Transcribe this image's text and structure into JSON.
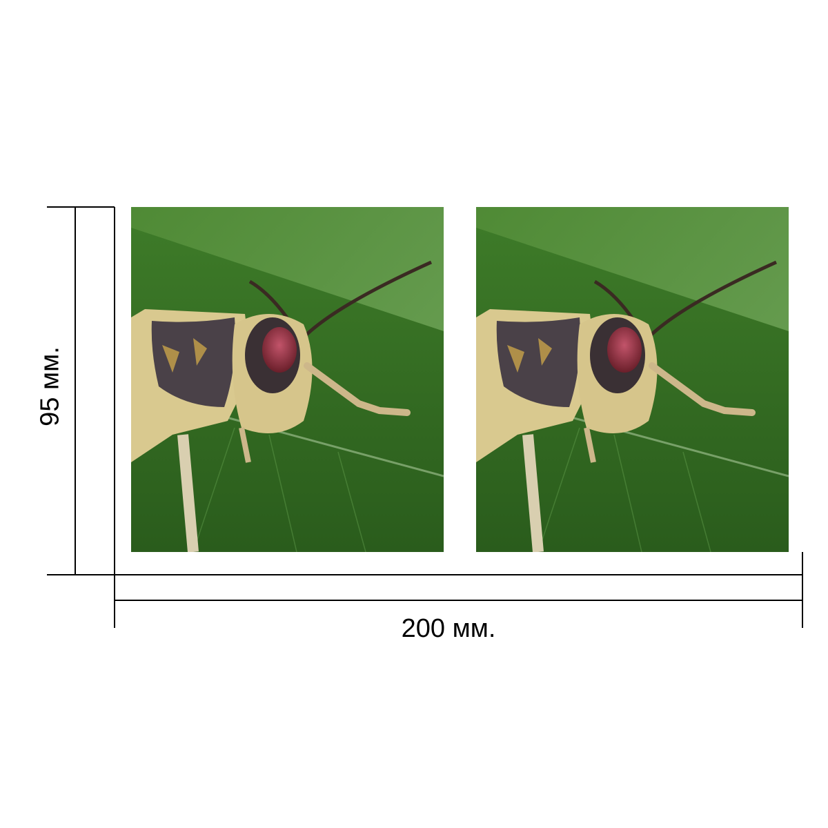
{
  "dimensions": {
    "width_label": "200 мм.",
    "height_label": "95 мм."
  },
  "photos": [
    {
      "subject": "grasshopper-on-leaf"
    },
    {
      "subject": "grasshopper-on-leaf"
    }
  ],
  "colors": {
    "leaf_dark": "#2f6a1f",
    "leaf_light": "#5a9a3a",
    "body": "#d9c98f",
    "eye": "#9a3a45",
    "line": "#000000"
  }
}
